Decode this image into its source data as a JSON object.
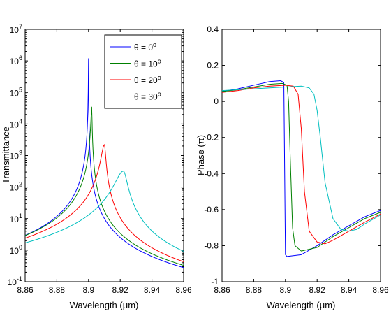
{
  "chart_data": [
    {
      "type": "line",
      "title": "",
      "xlabel": "Wavelength (μm)",
      "ylabel": "Transmittance",
      "xlim": [
        8.86,
        8.96
      ],
      "ylim": [
        0.1,
        10000000
      ],
      "yscale": "log",
      "xticks": [
        "8.86",
        "8.88",
        "8.9",
        "8.92",
        "8.94",
        "8.96"
      ],
      "yticks": [
        {
          "base": "10",
          "exp": "-1"
        },
        {
          "base": "10",
          "exp": "0"
        },
        {
          "base": "10",
          "exp": "1"
        },
        {
          "base": "10",
          "exp": "2"
        },
        {
          "base": "10",
          "exp": "3"
        },
        {
          "base": "10",
          "exp": "4"
        },
        {
          "base": "10",
          "exp": "5"
        },
        {
          "base": "10",
          "exp": "6"
        },
        {
          "base": "10",
          "exp": "7"
        }
      ],
      "legend_position": "top-right",
      "grid": false,
      "series": [
        {
          "name": "θ = 0",
          "legend_text": "θ =  0",
          "legend_sup": "o",
          "color": "#0000ff",
          "peak_x": 8.9,
          "peak_y": 1200000,
          "width": 0.0012,
          "x_at_minus": 2.95,
          "x_at_plus": 0.28
        },
        {
          "name": "θ = 10",
          "legend_text": "θ = 10",
          "legend_sup": "o",
          "color": "#008000",
          "peak_x": 8.902,
          "peak_y": 35000,
          "width": 0.0018,
          "x_at_minus": 2.9,
          "x_at_plus": 0.33
        },
        {
          "name": "θ = 20",
          "legend_text": "θ = 20",
          "legend_sup": "o",
          "color": "#ff0000",
          "peak_x": 8.91,
          "peak_y": 2200,
          "width": 0.0028,
          "x_at_minus": 2.4,
          "x_at_plus": 0.43
        },
        {
          "name": "θ = 30",
          "legend_text": "θ = 30",
          "legend_sup": "o",
          "color": "#00bfbf",
          "peak_x": 8.922,
          "peak_y": 320,
          "width": 0.0048,
          "x_at_minus": 1.7,
          "x_at_plus": 0.92
        }
      ]
    },
    {
      "type": "line",
      "title": "",
      "xlabel": "Wavelength (μm)",
      "ylabel": "Phase (π)",
      "xlim": [
        8.86,
        8.96
      ],
      "ylim": [
        -1,
        0.4
      ],
      "xticks": [
        "8.86",
        "8.88",
        "8.9",
        "8.92",
        "8.94",
        "8.96"
      ],
      "yticks": [
        "-1",
        "-0.8",
        "-0.6",
        "-0.4",
        "-0.2",
        "0",
        "0.2",
        "0.4"
      ],
      "grid": false,
      "series": [
        {
          "name": "θ = 0",
          "color": "#0000ff",
          "points": [
            [
              8.86,
              0.055
            ],
            [
              8.87,
              0.07
            ],
            [
              8.88,
              0.09
            ],
            [
              8.89,
              0.11
            ],
            [
              8.897,
              0.115
            ],
            [
              8.899,
              0.105
            ],
            [
              8.9,
              -0.85
            ],
            [
              8.901,
              -0.86
            ],
            [
              8.91,
              -0.85
            ],
            [
              8.92,
              -0.8
            ],
            [
              8.93,
              -0.74
            ],
            [
              8.94,
              -0.69
            ],
            [
              8.95,
              -0.64
            ],
            [
              8.96,
              -0.605
            ]
          ]
        },
        {
          "name": "θ = 10",
          "color": "#008000",
          "points": [
            [
              8.86,
              0.055
            ],
            [
              8.87,
              0.065
            ],
            [
              8.88,
              0.08
            ],
            [
              8.89,
              0.095
            ],
            [
              8.898,
              0.1
            ],
            [
              8.901,
              0.09
            ],
            [
              8.902,
              0.0
            ],
            [
              8.903,
              -0.3
            ],
            [
              8.9045,
              -0.7
            ],
            [
              8.906,
              -0.8
            ],
            [
              8.91,
              -0.83
            ],
            [
              8.92,
              -0.81
            ],
            [
              8.93,
              -0.75
            ],
            [
              8.94,
              -0.7
            ],
            [
              8.95,
              -0.65
            ],
            [
              8.96,
              -0.615
            ]
          ]
        },
        {
          "name": "θ = 20",
          "color": "#ff0000",
          "points": [
            [
              8.86,
              0.05
            ],
            [
              8.87,
              0.06
            ],
            [
              8.88,
              0.075
            ],
            [
              8.89,
              0.085
            ],
            [
              8.9,
              0.09
            ],
            [
              8.905,
              0.085
            ],
            [
              8.908,
              0.04
            ],
            [
              8.91,
              -0.15
            ],
            [
              8.912,
              -0.5
            ],
            [
              8.915,
              -0.72
            ],
            [
              8.92,
              -0.78
            ],
            [
              8.925,
              -0.79
            ],
            [
              8.93,
              -0.77
            ],
            [
              8.94,
              -0.72
            ],
            [
              8.95,
              -0.67
            ],
            [
              8.96,
              -0.625
            ]
          ]
        },
        {
          "name": "θ = 30",
          "color": "#00bfbf",
          "points": [
            [
              8.86,
              0.06
            ],
            [
              8.87,
              0.065
            ],
            [
              8.88,
              0.07
            ],
            [
              8.89,
              0.075
            ],
            [
              8.9,
              0.08
            ],
            [
              8.91,
              0.085
            ],
            [
              8.915,
              0.075
            ],
            [
              8.918,
              0.04
            ],
            [
              8.92,
              -0.05
            ],
            [
              8.922,
              -0.2
            ],
            [
              8.925,
              -0.45
            ],
            [
              8.93,
              -0.65
            ],
            [
              8.935,
              -0.71
            ],
            [
              8.94,
              -0.72
            ],
            [
              8.945,
              -0.71
            ],
            [
              8.95,
              -0.68
            ],
            [
              8.96,
              -0.63
            ]
          ]
        }
      ]
    }
  ]
}
